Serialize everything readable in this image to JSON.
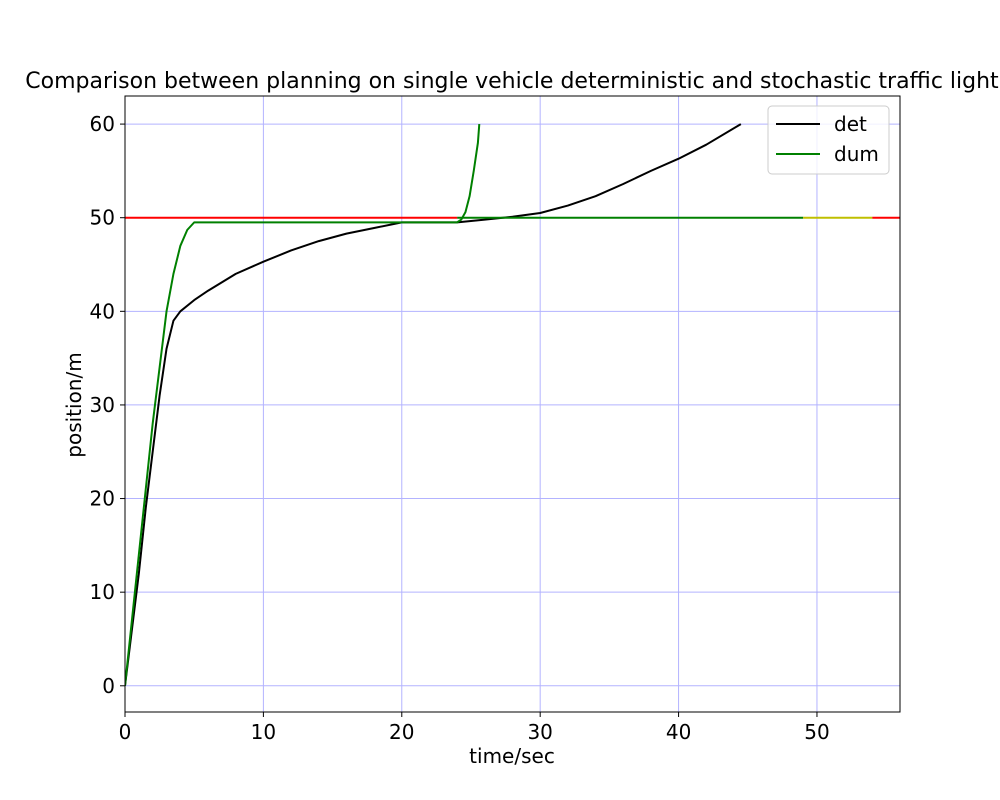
{
  "chart_data": {
    "type": "line",
    "title": "Comparison between planning on single vehicle deterministic and stochastic traffic light",
    "xlabel": "time/sec",
    "ylabel": "position/m",
    "xlim": [
      0,
      56
    ],
    "ylim": [
      -2.8,
      63
    ],
    "xticks": [
      0,
      10,
      20,
      30,
      40,
      50
    ],
    "yticks": [
      0,
      10,
      20,
      30,
      40,
      50,
      60
    ],
    "grid": true,
    "grid_color": "#b3b3ff",
    "legend": {
      "location": "upper right",
      "entries": [
        "det",
        "dum"
      ]
    },
    "series": [
      {
        "name": "det",
        "color": "#000000",
        "points": [
          [
            0,
            0
          ],
          [
            0.5,
            6
          ],
          [
            1,
            12
          ],
          [
            1.5,
            19
          ],
          [
            2,
            25
          ],
          [
            2.5,
            31
          ],
          [
            3,
            36
          ],
          [
            3.5,
            39
          ],
          [
            4,
            40
          ],
          [
            5,
            41.2
          ],
          [
            6,
            42.2
          ],
          [
            8,
            44
          ],
          [
            10,
            45.3
          ],
          [
            12,
            46.5
          ],
          [
            14,
            47.5
          ],
          [
            16,
            48.3
          ],
          [
            18,
            48.9
          ],
          [
            20,
            49.5
          ],
          [
            22,
            49.5
          ],
          [
            24,
            49.5
          ],
          [
            26,
            49.8
          ],
          [
            28,
            50.1
          ],
          [
            30,
            50.5
          ],
          [
            32,
            51.3
          ],
          [
            34,
            52.3
          ],
          [
            36,
            53.6
          ],
          [
            38,
            55
          ],
          [
            40,
            56.3
          ],
          [
            42,
            57.8
          ],
          [
            44.5,
            60
          ]
        ]
      },
      {
        "name": "dum",
        "color": "#008000",
        "points": [
          [
            0,
            0
          ],
          [
            0.5,
            7
          ],
          [
            1,
            14
          ],
          [
            1.5,
            21
          ],
          [
            2,
            28
          ],
          [
            2.5,
            34
          ],
          [
            3,
            40
          ],
          [
            3.5,
            44
          ],
          [
            4,
            47
          ],
          [
            4.5,
            48.7
          ],
          [
            5,
            49.5
          ],
          [
            10,
            49.5
          ],
          [
            15,
            49.5
          ],
          [
            20,
            49.5
          ],
          [
            24,
            49.5
          ],
          [
            24.3,
            49.8
          ],
          [
            24.6,
            50.6
          ],
          [
            24.9,
            52.3
          ],
          [
            25.2,
            55
          ],
          [
            25.5,
            58
          ],
          [
            25.6,
            60
          ]
        ]
      },
      {
        "color": "#008000",
        "points": [
          [
            24,
            50
          ],
          [
            49,
            50
          ]
        ]
      },
      {
        "color": "#bfbf00",
        "points": [
          [
            49,
            50
          ],
          [
            54,
            50
          ]
        ]
      },
      {
        "color": "#ff0000",
        "points": [
          [
            0,
            50
          ],
          [
            24,
            50
          ]
        ]
      },
      {
        "color": "#ff0000",
        "points": [
          [
            54,
            50
          ],
          [
            56,
            50
          ]
        ]
      }
    ]
  }
}
